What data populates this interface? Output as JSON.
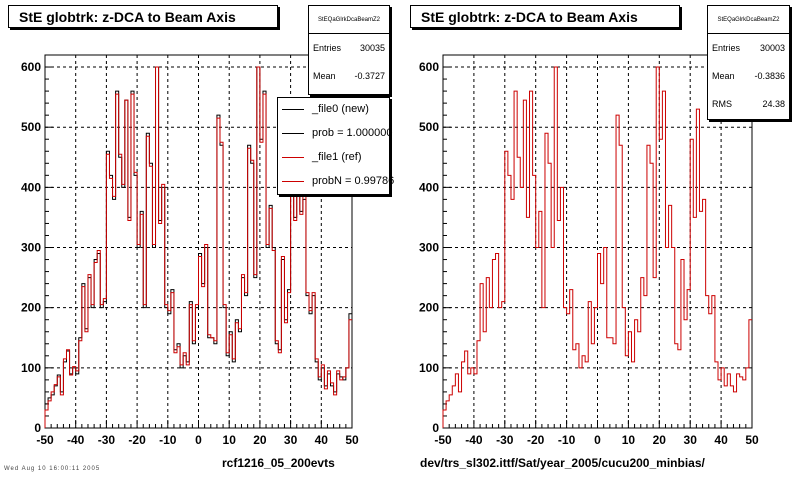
{
  "left_panel": {
    "title": "StE globtrk: z-DCA to Beam Axis",
    "footer": "rcf1216_05_200evts",
    "stats": {
      "name": "StEQaGlrkDcaBeamZ2",
      "rows": [
        {
          "key": "Entries",
          "value": "30035"
        },
        {
          "key": "Mean",
          "value": "-0.3727"
        }
      ]
    },
    "legend": [
      {
        "label": "_file0 (new)",
        "color": "#000000"
      },
      {
        "label": "prob = 1.000000",
        "color": "#000000"
      },
      {
        "label": "_file1 (ref)",
        "color": "#cc0000"
      },
      {
        "label": "probN = 0.99786",
        "color": "#cc0000"
      }
    ]
  },
  "right_panel": {
    "title": "StE globtrk: z-DCA to Beam Axis",
    "footer": "dev/trs_sl302.ittf/Sat/year_2005/cucu200_minbias/",
    "stats": {
      "name": "StEQaGlrkDcaBeamZ2",
      "rows": [
        {
          "key": "Entries",
          "value": "30003"
        },
        {
          "key": "Mean",
          "value": "-0.3836"
        },
        {
          "key": "RMS",
          "value": "24.38"
        }
      ]
    }
  },
  "tiny_text": "Wed Aug 10 16:00:11 2005",
  "chart_data": [
    {
      "type": "histogram",
      "title": "StE globtrk: z-DCA to Beam Axis",
      "xlim": [
        -50,
        50
      ],
      "ylim": [
        0,
        620
      ],
      "xticks": [
        -50,
        -40,
        -30,
        -20,
        -10,
        0,
        10,
        20,
        30,
        40,
        50
      ],
      "yticks": [
        0,
        100,
        200,
        300,
        400,
        500,
        600
      ],
      "grid": true,
      "bin_edges_start": -50,
      "bin_width": 1,
      "series": [
        {
          "name": "_file0 (new)",
          "color": "#000000",
          "values": [
            40,
            50,
            55,
            70,
            88,
            60,
            110,
            128,
            90,
            100,
            90,
            150,
            240,
            165,
            250,
            200,
            280,
            290,
            200,
            210,
            460,
            420,
            380,
            560,
            450,
            400,
            545,
            350,
            560,
            420,
            300,
            360,
            200,
            490,
            440,
            300,
            600,
            345,
            400,
            200,
            190,
            230,
            130,
            140,
            100,
            120,
            110,
            210,
            140,
            200,
            290,
            240,
            300,
            150,
            150,
            140,
            520,
            470,
            200,
            120,
            160,
            110,
            180,
            160,
            250,
            220,
            470,
            440,
            250,
            600,
            480,
            560,
            300,
            370,
            300,
            140,
            130,
            280,
            180,
            230,
            480,
            350,
            530,
            360,
            380,
            220,
            190,
            220,
            110,
            80,
            100,
            70,
            90,
            70,
            60,
            90,
            85,
            80,
            100,
            190
          ]
        },
        {
          "name": "_file1 (ref)",
          "color": "#cc0000",
          "values": [
            30,
            45,
            60,
            72,
            85,
            55,
            115,
            130,
            88,
            102,
            95,
            145,
            235,
            160,
            255,
            205,
            275,
            295,
            205,
            215,
            455,
            415,
            385,
            555,
            455,
            405,
            545,
            345,
            555,
            425,
            305,
            355,
            205,
            485,
            435,
            305,
            600,
            340,
            405,
            205,
            195,
            225,
            125,
            135,
            105,
            125,
            105,
            205,
            145,
            205,
            285,
            235,
            305,
            155,
            150,
            145,
            515,
            475,
            205,
            125,
            155,
            115,
            175,
            165,
            255,
            225,
            465,
            445,
            255,
            600,
            475,
            555,
            305,
            365,
            295,
            145,
            125,
            285,
            175,
            225,
            485,
            345,
            525,
            355,
            385,
            225,
            195,
            225,
            115,
            85,
            105,
            65,
            95,
            75,
            55,
            95,
            80,
            85,
            100,
            180
          ]
        }
      ]
    },
    {
      "type": "histogram",
      "title": "StE globtrk: z-DCA to Beam Axis",
      "xlim": [
        -50,
        50
      ],
      "ylim": [
        0,
        620
      ],
      "xticks": [
        -50,
        -40,
        -30,
        -20,
        -10,
        0,
        10,
        20,
        30,
        40,
        50
      ],
      "yticks": [
        0,
        100,
        200,
        300,
        400,
        500,
        600
      ],
      "grid": true,
      "bin_edges_start": -50,
      "bin_width": 1,
      "series": [
        {
          "name": "",
          "color": "#cc0000",
          "values": [
            30,
            45,
            55,
            70,
            90,
            60,
            110,
            128,
            90,
            100,
            90,
            145,
            240,
            160,
            250,
            200,
            280,
            290,
            200,
            210,
            460,
            420,
            380,
            560,
            450,
            400,
            545,
            350,
            560,
            420,
            300,
            360,
            200,
            490,
            440,
            300,
            600,
            345,
            400,
            200,
            190,
            230,
            130,
            140,
            100,
            120,
            110,
            210,
            140,
            200,
            290,
            240,
            300,
            150,
            150,
            140,
            520,
            470,
            200,
            120,
            160,
            110,
            180,
            160,
            250,
            220,
            470,
            440,
            250,
            600,
            480,
            560,
            300,
            370,
            300,
            140,
            130,
            280,
            180,
            230,
            480,
            350,
            530,
            360,
            380,
            220,
            190,
            220,
            110,
            80,
            100,
            70,
            90,
            70,
            60,
            90,
            85,
            80,
            100,
            180
          ]
        }
      ]
    }
  ]
}
